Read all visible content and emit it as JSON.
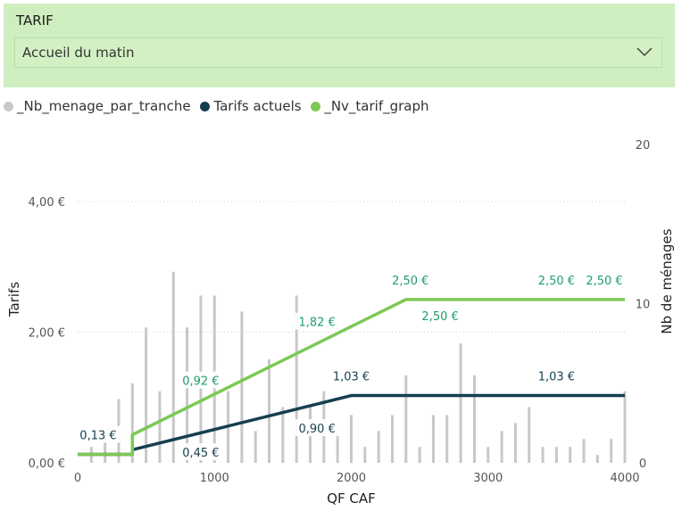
{
  "slicer": {
    "title": "TARIF",
    "selected": "Accueil du matin"
  },
  "colors": {
    "bars": "#c8c8c8",
    "current": "#143f4f",
    "new": "#7dc855",
    "newLabel": "#1e9e6a",
    "slicerBg": "#cfeec0"
  },
  "chart_data": {
    "type": "bar+line",
    "xlabel": "QF CAF",
    "ylabel": "Tarifs",
    "y2label": "Nb de ménages",
    "xlim": [
      0,
      4000
    ],
    "ylim": [
      0,
      4.9
    ],
    "y2lim": [
      0,
      20.1
    ],
    "xticks": [
      0,
      1000,
      2000,
      3000,
      4000
    ],
    "xtick_labels": [
      "0",
      "1000",
      "2000",
      "3000",
      "4000"
    ],
    "yticks": [
      0,
      2,
      4
    ],
    "ytick_labels": [
      "0,00 €",
      "2,00 €",
      "4,00 €"
    ],
    "y2ticks": [
      0,
      10,
      20
    ],
    "y2tick_labels": [
      "0",
      "10",
      "20"
    ],
    "grid": true,
    "legend_position": "top-left",
    "bars": {
      "name": "_Nb_menage_par_tranche",
      "x": [
        100,
        200,
        300,
        400,
        500,
        600,
        700,
        800,
        900,
        1000,
        1100,
        1200,
        1300,
        1400,
        1500,
        1600,
        1700,
        1800,
        1900,
        2000,
        2100,
        2200,
        2300,
        2400,
        2500,
        2600,
        2700,
        2800,
        2900,
        3000,
        3100,
        3200,
        3300,
        3400,
        3500,
        3600,
        3700,
        3800,
        3900,
        4000
      ],
      "values": [
        1,
        2,
        4,
        5,
        8.5,
        4.5,
        12,
        8.5,
        10.5,
        10.5,
        4.5,
        9.5,
        2,
        6.5,
        3.5,
        10.5,
        3.5,
        4.5,
        2,
        3,
        1,
        2,
        3,
        5.5,
        1,
        3,
        3,
        7.5,
        5.5,
        1,
        2,
        2.5,
        3.5,
        1,
        1,
        1,
        1.5,
        0.5,
        1.5,
        4.5
      ]
    },
    "series": [
      {
        "name": "Tarifs actuels",
        "x": [
          0,
          400,
          400,
          2000,
          4000
        ],
        "y": [
          0.13,
          0.13,
          0.2,
          1.03,
          1.03
        ],
        "labels": [
          {
            "x": 150,
            "y": 0.13,
            "text": "0,13 €"
          },
          {
            "x": 900,
            "y": 0.45,
            "text": "0,45 €"
          },
          {
            "x": 1750,
            "y": 0.9,
            "text": "0,90 €"
          },
          {
            "x": 2000,
            "y": 1.03,
            "text": "1,03 €"
          },
          {
            "x": 3500,
            "y": 1.03,
            "text": "1,03 €"
          }
        ]
      },
      {
        "name": "_Nv_tarif_graph",
        "x": [
          0,
          400,
          400,
          2400,
          4000
        ],
        "y": [
          0.13,
          0.13,
          0.43,
          2.5,
          2.5
        ],
        "labels": [
          {
            "x": 900,
            "y": 0.92,
            "text": "0,92 €"
          },
          {
            "x": 1750,
            "y": 1.82,
            "text": "1,82 €"
          },
          {
            "x": 2400,
            "y": 2.5,
            "text": "2,50 €"
          },
          {
            "x": 2650,
            "y": 2.5,
            "text": "2,50 €"
          },
          {
            "x": 3500,
            "y": 2.5,
            "text": "2,50 €"
          },
          {
            "x": 3850,
            "y": 2.5,
            "text": "2,50 €"
          }
        ]
      }
    ]
  }
}
